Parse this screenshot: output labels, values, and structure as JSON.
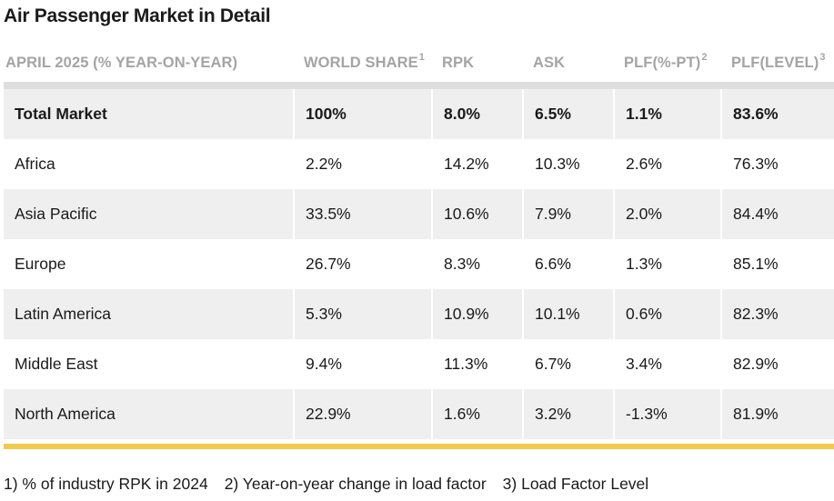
{
  "title": "Air Passenger Market in Detail",
  "chart_data": {
    "type": "table",
    "title": "Air Passenger Market in Detail",
    "columns": [
      {
        "label": "APRIL 2025 (% YEAR-ON-YEAR)",
        "sup": ""
      },
      {
        "label": "WORLD SHARE",
        "sup": "1"
      },
      {
        "label": "RPK",
        "sup": ""
      },
      {
        "label": "ASK",
        "sup": ""
      },
      {
        "label": "PLF(%-PT)",
        "sup": "2"
      },
      {
        "label": "PLF(LEVEL)",
        "sup": "3"
      }
    ],
    "rows": [
      [
        "Total Market",
        "100%",
        "8.0%",
        "6.5%",
        "1.1%",
        "83.6%"
      ],
      [
        "Africa",
        "2.2%",
        "14.2%",
        "10.3%",
        "2.6%",
        "76.3%"
      ],
      [
        "Asia Pacific",
        "33.5%",
        "10.6%",
        "7.9%",
        "2.0%",
        "84.4%"
      ],
      [
        "Europe",
        "26.7%",
        "8.3%",
        "6.6%",
        "1.3%",
        "85.1%"
      ],
      [
        "Latin America",
        "5.3%",
        "10.9%",
        "10.1%",
        "0.6%",
        "82.3%"
      ],
      [
        "Middle East",
        "9.4%",
        "11.3%",
        "6.7%",
        "3.4%",
        "82.9%"
      ],
      [
        "North America",
        "22.9%",
        "1.6%",
        "3.2%",
        "-1.3%",
        "81.9%"
      ]
    ]
  },
  "footnotes": [
    "1) % of industry RPK in 2024",
    "2) Year-on-year change in load factor",
    "3) Load Factor Level"
  ],
  "colors": {
    "header_text": "#a4a4a4",
    "shaded_row": "#efefef",
    "accent_rule": "#f2c94c"
  }
}
